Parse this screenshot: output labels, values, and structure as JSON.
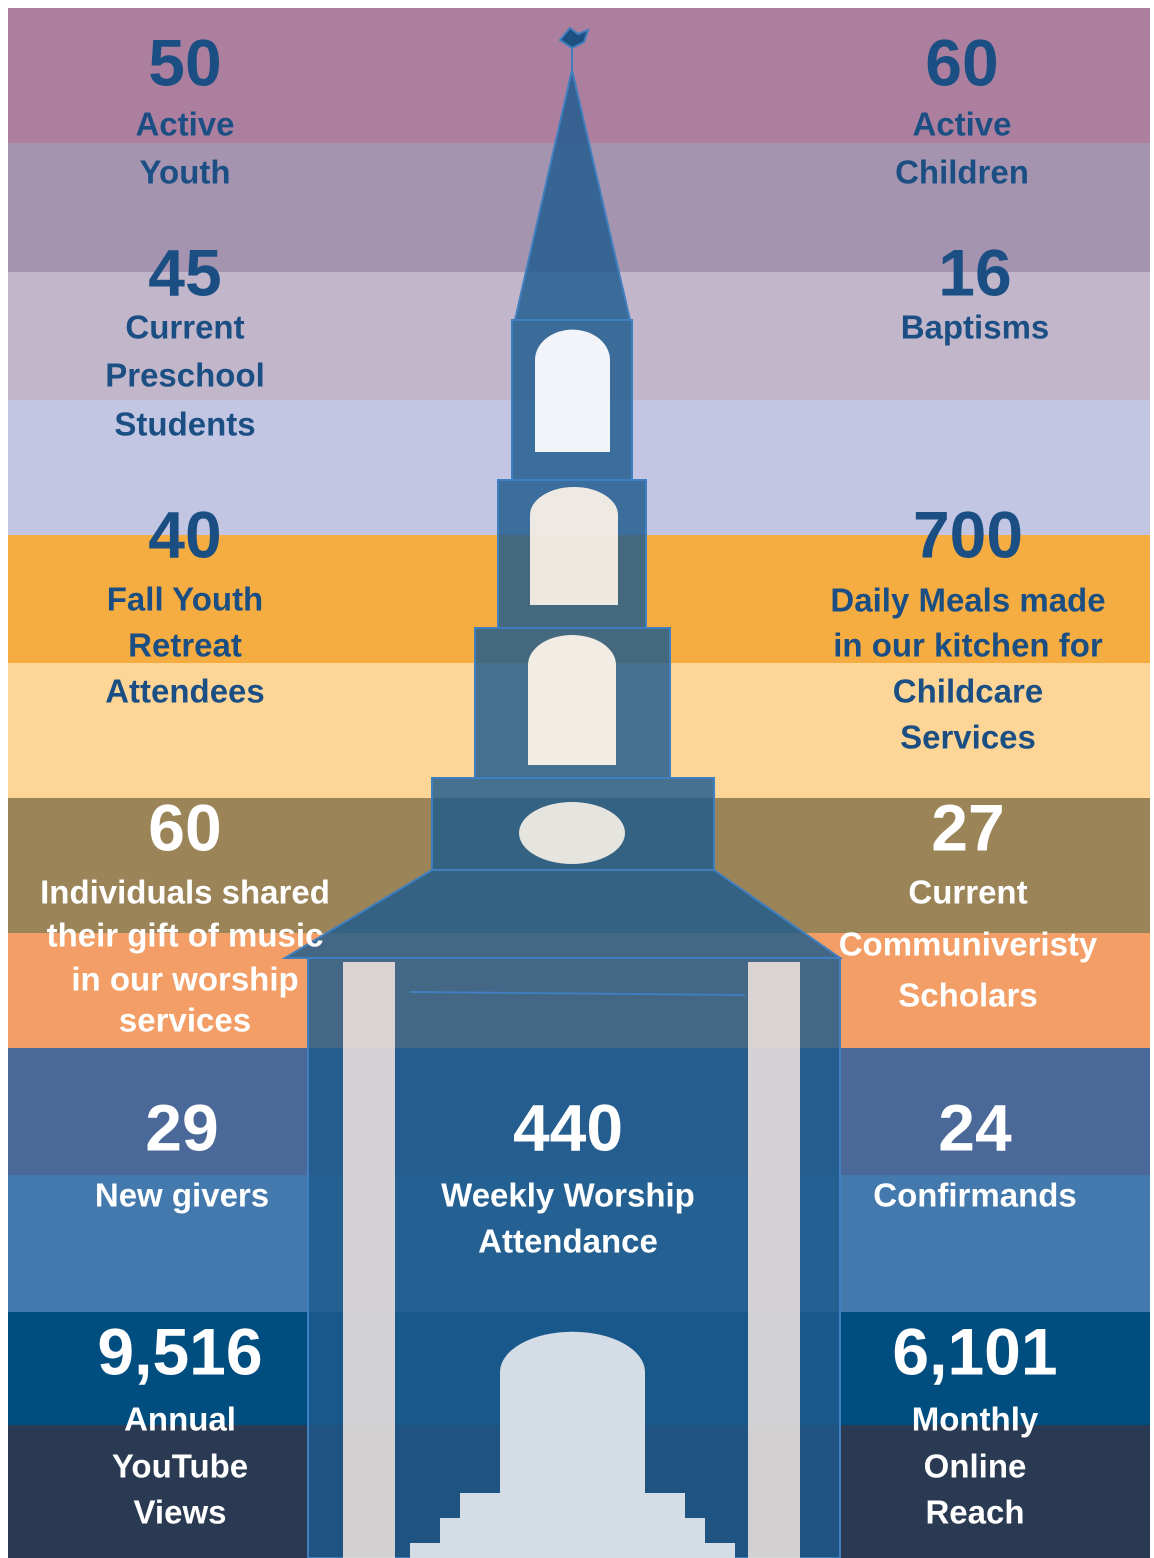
{
  "stats": [
    {
      "number": "50",
      "label": [
        "Active",
        "Youth"
      ]
    },
    {
      "number": "60",
      "label": [
        "Active",
        "Children"
      ]
    },
    {
      "number": "45",
      "label": [
        "Current",
        "Preschool",
        "Students"
      ]
    },
    {
      "number": "16",
      "label": [
        "Baptisms"
      ]
    },
    {
      "number": "40",
      "label": [
        "Fall Youth",
        "Retreat",
        "Attendees"
      ]
    },
    {
      "number": "700",
      "label": [
        "Daily Meals made",
        "in our kitchen for",
        "Childcare",
        "Services"
      ]
    },
    {
      "number": "60",
      "label": [
        "Individuals shared",
        "their gift of music",
        "in our worship",
        "services"
      ]
    },
    {
      "number": "27",
      "label": [
        "Current",
        "Communiveristy",
        "Scholars"
      ]
    },
    {
      "number": "29",
      "label": [
        "New givers"
      ]
    },
    {
      "number": "440",
      "label": [
        "Weekly Worship",
        "Attendance"
      ]
    },
    {
      "number": "24",
      "label": [
        "Confirmands"
      ]
    },
    {
      "number": "9,516",
      "label": [
        "Annual",
        "YouTube",
        "Views"
      ]
    },
    {
      "number": "6,101",
      "label": [
        "Monthly",
        "Online",
        "Reach"
      ]
    }
  ]
}
